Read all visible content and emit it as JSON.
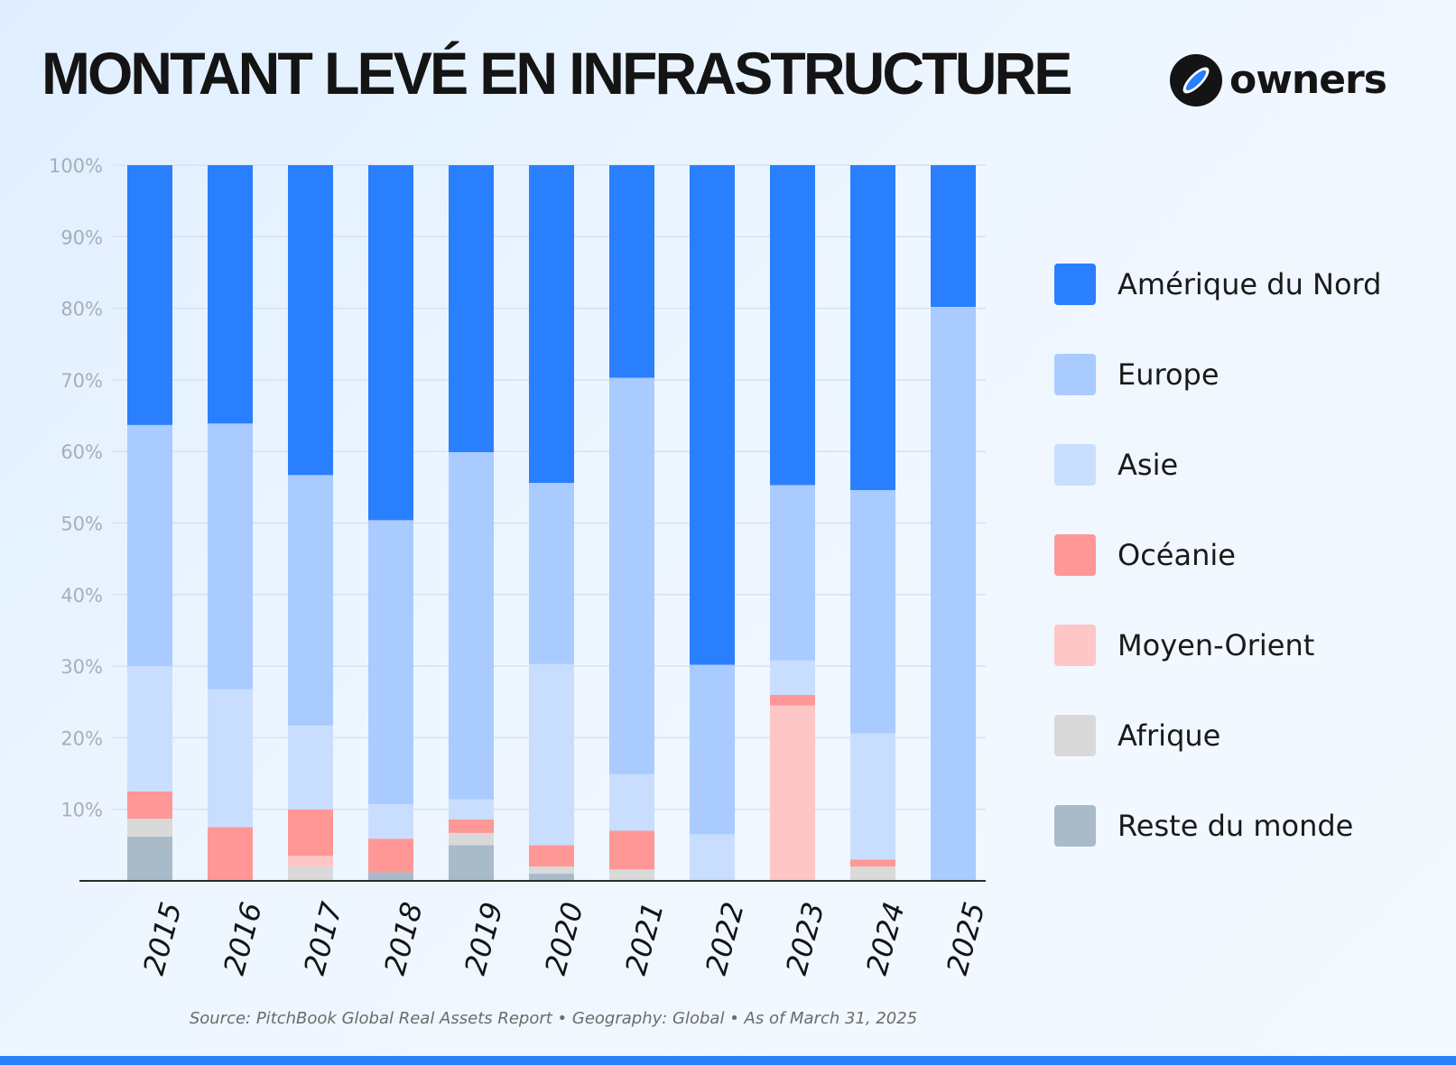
{
  "title": "MONTANT LEVÉ EN INFRASTRUCTURE",
  "brand": {
    "name": "owners",
    "logo_icon": "owners-logo-icon"
  },
  "source": "Source: PitchBook Global Real Assets Report • Geography: Global • As of March 31, 2025",
  "accent_color": "#2a7fff",
  "chart_data": {
    "type": "bar",
    "stacked": true,
    "title": "MONTANT LEVÉ EN INFRASTRUCTURE",
    "xlabel": "",
    "ylabel": "",
    "ylim": [
      0,
      100
    ],
    "yticks": [
      "10%",
      "20%",
      "30%",
      "40%",
      "50%",
      "60%",
      "70%",
      "80%",
      "90%",
      "100%"
    ],
    "grid": true,
    "legend_position": "right",
    "categories": [
      "2015",
      "2016",
      "2017",
      "2018",
      "2019",
      "2020",
      "2021",
      "2022",
      "2023",
      "2024",
      "2025"
    ],
    "series": [
      {
        "name": "Reste du monde",
        "color": "#a9bbc8",
        "values": [
          6.2,
          0,
          0,
          1.2,
          5.0,
          1.0,
          0,
          0,
          0,
          0,
          0
        ]
      },
      {
        "name": "Afrique",
        "color": "#d9d9d9",
        "values": [
          2.5,
          0,
          2.0,
          0,
          1.7,
          1.0,
          1.6,
          0,
          0,
          2.0,
          0
        ]
      },
      {
        "name": "Moyen-Orient",
        "color": "#ffc6c6",
        "values": [
          0,
          0,
          1.5,
          0,
          0,
          0,
          0,
          0,
          24.5,
          0,
          0
        ]
      },
      {
        "name": "Océanie",
        "color": "#ff9797",
        "values": [
          3.8,
          7.5,
          6.5,
          4.7,
          1.9,
          3.0,
          5.4,
          0,
          1.5,
          1.0,
          0
        ]
      },
      {
        "name": "Asie",
        "color": "#c9deff",
        "values": [
          17.5,
          19.3,
          11.7,
          4.8,
          2.8,
          25.3,
          7.9,
          6.5,
          4.8,
          17.6,
          0
        ]
      },
      {
        "name": "Europe",
        "color": "#a9cbff",
        "values": [
          33.7,
          37.1,
          35.0,
          39.7,
          48.5,
          25.3,
          55.4,
          23.7,
          24.5,
          34.0,
          80.2
        ]
      },
      {
        "name": "Amérique du Nord",
        "color": "#2a7fff",
        "values": [
          36.3,
          36.1,
          43.3,
          49.6,
          40.1,
          44.4,
          29.7,
          69.8,
          44.7,
          45.4,
          19.8
        ]
      }
    ],
    "legend_order": [
      "Amérique du Nord",
      "Europe",
      "Asie",
      "Océanie",
      "Moyen-Orient",
      "Afrique",
      "Reste du monde"
    ]
  }
}
